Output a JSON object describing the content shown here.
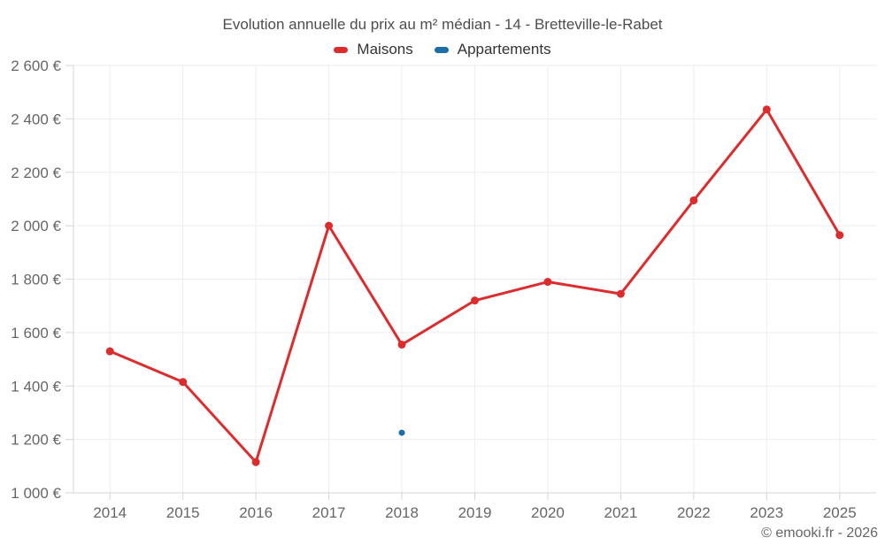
{
  "header": {
    "title": "Evolution annuelle du prix au m² médian - 14 - Bretteville-le-Rabet"
  },
  "footer": {
    "copyright": "© emooki.fr - 2026"
  },
  "colors": {
    "grid": "#ededed",
    "axis": "#d4d4d4",
    "axis_text": "#666666",
    "title_text": "#4d4d4d"
  },
  "chart_data": {
    "type": "line",
    "title": "Evolution annuelle du prix au m² médian - 14 - Bretteville-le-Rabet",
    "categories": [
      "2014",
      "2015",
      "2016",
      "2017",
      "2018",
      "2019",
      "2020",
      "2021",
      "2022",
      "2023",
      "2025"
    ],
    "series": [
      {
        "name": "Maisons",
        "color": "#dd2c2e",
        "values": [
          1530,
          1415,
          1115,
          2000,
          1555,
          1720,
          1790,
          1745,
          2095,
          2435,
          1965
        ]
      },
      {
        "name": "Appartements",
        "color": "#1c6fa4",
        "values": [
          null,
          null,
          null,
          null,
          1225,
          null,
          null,
          null,
          null,
          null,
          null
        ]
      }
    ],
    "xlabel": "",
    "ylabel": "",
    "ylim": [
      1000,
      2600
    ],
    "yticks": [
      {
        "value": 1000,
        "label": "1 000 €"
      },
      {
        "value": 1200,
        "label": "1 200 €"
      },
      {
        "value": 1400,
        "label": "1 400 €"
      },
      {
        "value": 1600,
        "label": "1 600 €"
      },
      {
        "value": 1800,
        "label": "1 800 €"
      },
      {
        "value": 2000,
        "label": "2 000 €"
      },
      {
        "value": 2200,
        "label": "2 200 €"
      },
      {
        "value": 2400,
        "label": "2 400 €"
      },
      {
        "value": 2600,
        "label": "2 600 €"
      }
    ],
    "grid": true,
    "legend_position": "top"
  }
}
